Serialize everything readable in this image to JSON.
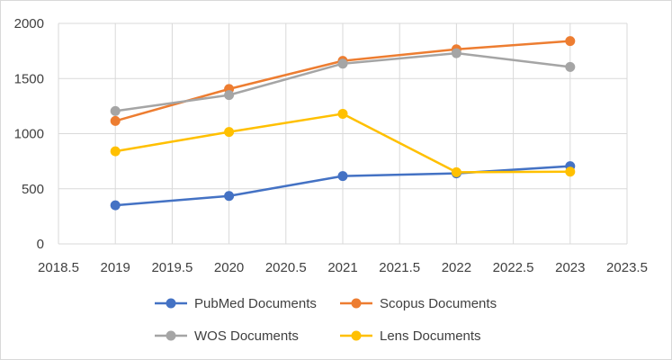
{
  "chart_data": {
    "type": "scatter",
    "title": "",
    "xlabel": "",
    "ylabel": "",
    "xlim": [
      2018.5,
      2023.5
    ],
    "ylim": [
      0,
      2000
    ],
    "x_ticks": [
      "2018.5",
      "2019",
      "2019.5",
      "2020",
      "2020.5",
      "2021",
      "2021.5",
      "2022",
      "2022.5",
      "2023",
      "2023.5"
    ],
    "y_ticks": [
      "0",
      "500",
      "1000",
      "1500",
      "2000"
    ],
    "grid": "both",
    "legend_position": "bottom",
    "x": [
      2019,
      2020,
      2021,
      2022,
      2023
    ],
    "series": [
      {
        "name": "PubMed Documents",
        "color": "#4472c4",
        "values": [
          350,
          435,
          615,
          640,
          705
        ]
      },
      {
        "name": "Scopus Documents",
        "color": "#ed7d31",
        "values": [
          1115,
          1405,
          1660,
          1765,
          1840
        ]
      },
      {
        "name": "WOS Documents",
        "color": "#a5a5a5",
        "values": [
          1205,
          1350,
          1635,
          1730,
          1605
        ]
      },
      {
        "name": "Lens Documents",
        "color": "#ffc000",
        "values": [
          840,
          1015,
          1180,
          650,
          655
        ]
      }
    ]
  }
}
